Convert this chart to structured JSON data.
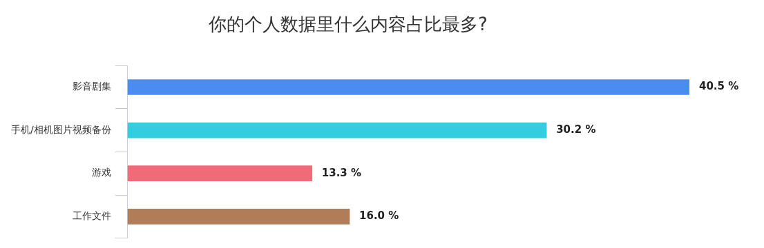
{
  "chart_data": {
    "type": "bar",
    "orientation": "horizontal",
    "title": "你的个人数据里什么内容占比最多?",
    "categories": [
      "影音剧集",
      "手机/相机图片视频备份",
      "游戏",
      "工作文件"
    ],
    "values": [
      40.5,
      30.2,
      13.3,
      16.0
    ],
    "colors": [
      "#4a8cf0",
      "#33cde0",
      "#f06a78",
      "#b07d58"
    ],
    "value_labels": [
      "40.5 %",
      "30.2 %",
      "13.3 %",
      "16.0 %"
    ],
    "legend": false
  }
}
